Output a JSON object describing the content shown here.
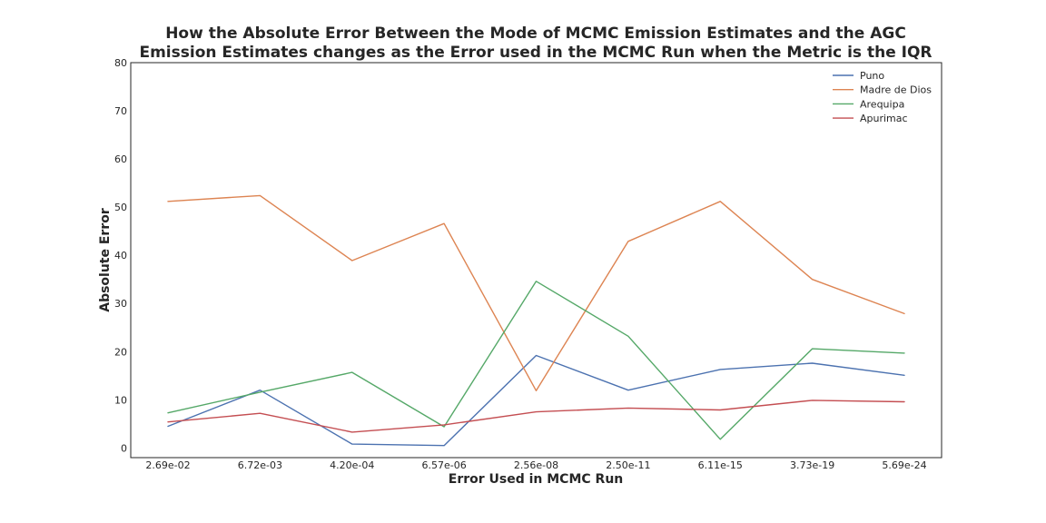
{
  "chart_data": {
    "type": "line",
    "title_lines": [
      "How the Absolute Error Between the Mode of MCMC Emission Estimates and the AGC",
      "Emission Estimates changes as the Error used in the MCMC Run when the Metric is the IQR"
    ],
    "xlabel": "Error Used in MCMC Run",
    "ylabel": "Absolute Error",
    "categories": [
      "2.69e-02",
      "6.72e-03",
      "4.20e-04",
      "6.57e-06",
      "2.56e-08",
      "2.50e-11",
      "6.11e-15",
      "3.73e-19",
      "5.69e-24"
    ],
    "ylim": [
      -2,
      80
    ],
    "yticks": [
      0,
      10,
      20,
      30,
      40,
      50,
      60,
      70,
      80
    ],
    "grid": false,
    "legend_position": "top-right",
    "series": [
      {
        "name": "Puno",
        "color": "#4c72b0",
        "values": [
          4.5,
          12.0,
          0.8,
          0.5,
          19.2,
          12.0,
          16.3,
          17.6,
          15.1
        ]
      },
      {
        "name": "Madre de Dios",
        "color": "#dd8452",
        "values": [
          51.2,
          52.4,
          38.9,
          46.6,
          11.9,
          42.9,
          51.2,
          35.0,
          27.9
        ]
      },
      {
        "name": "Arequipa",
        "color": "#55a868",
        "values": [
          7.3,
          11.6,
          15.7,
          4.4,
          34.6,
          23.2,
          1.8,
          20.6,
          19.7
        ]
      },
      {
        "name": "Apurimac",
        "color": "#c44e52",
        "values": [
          5.4,
          7.2,
          3.3,
          4.8,
          7.5,
          8.3,
          7.9,
          9.9,
          9.6
        ]
      }
    ]
  }
}
